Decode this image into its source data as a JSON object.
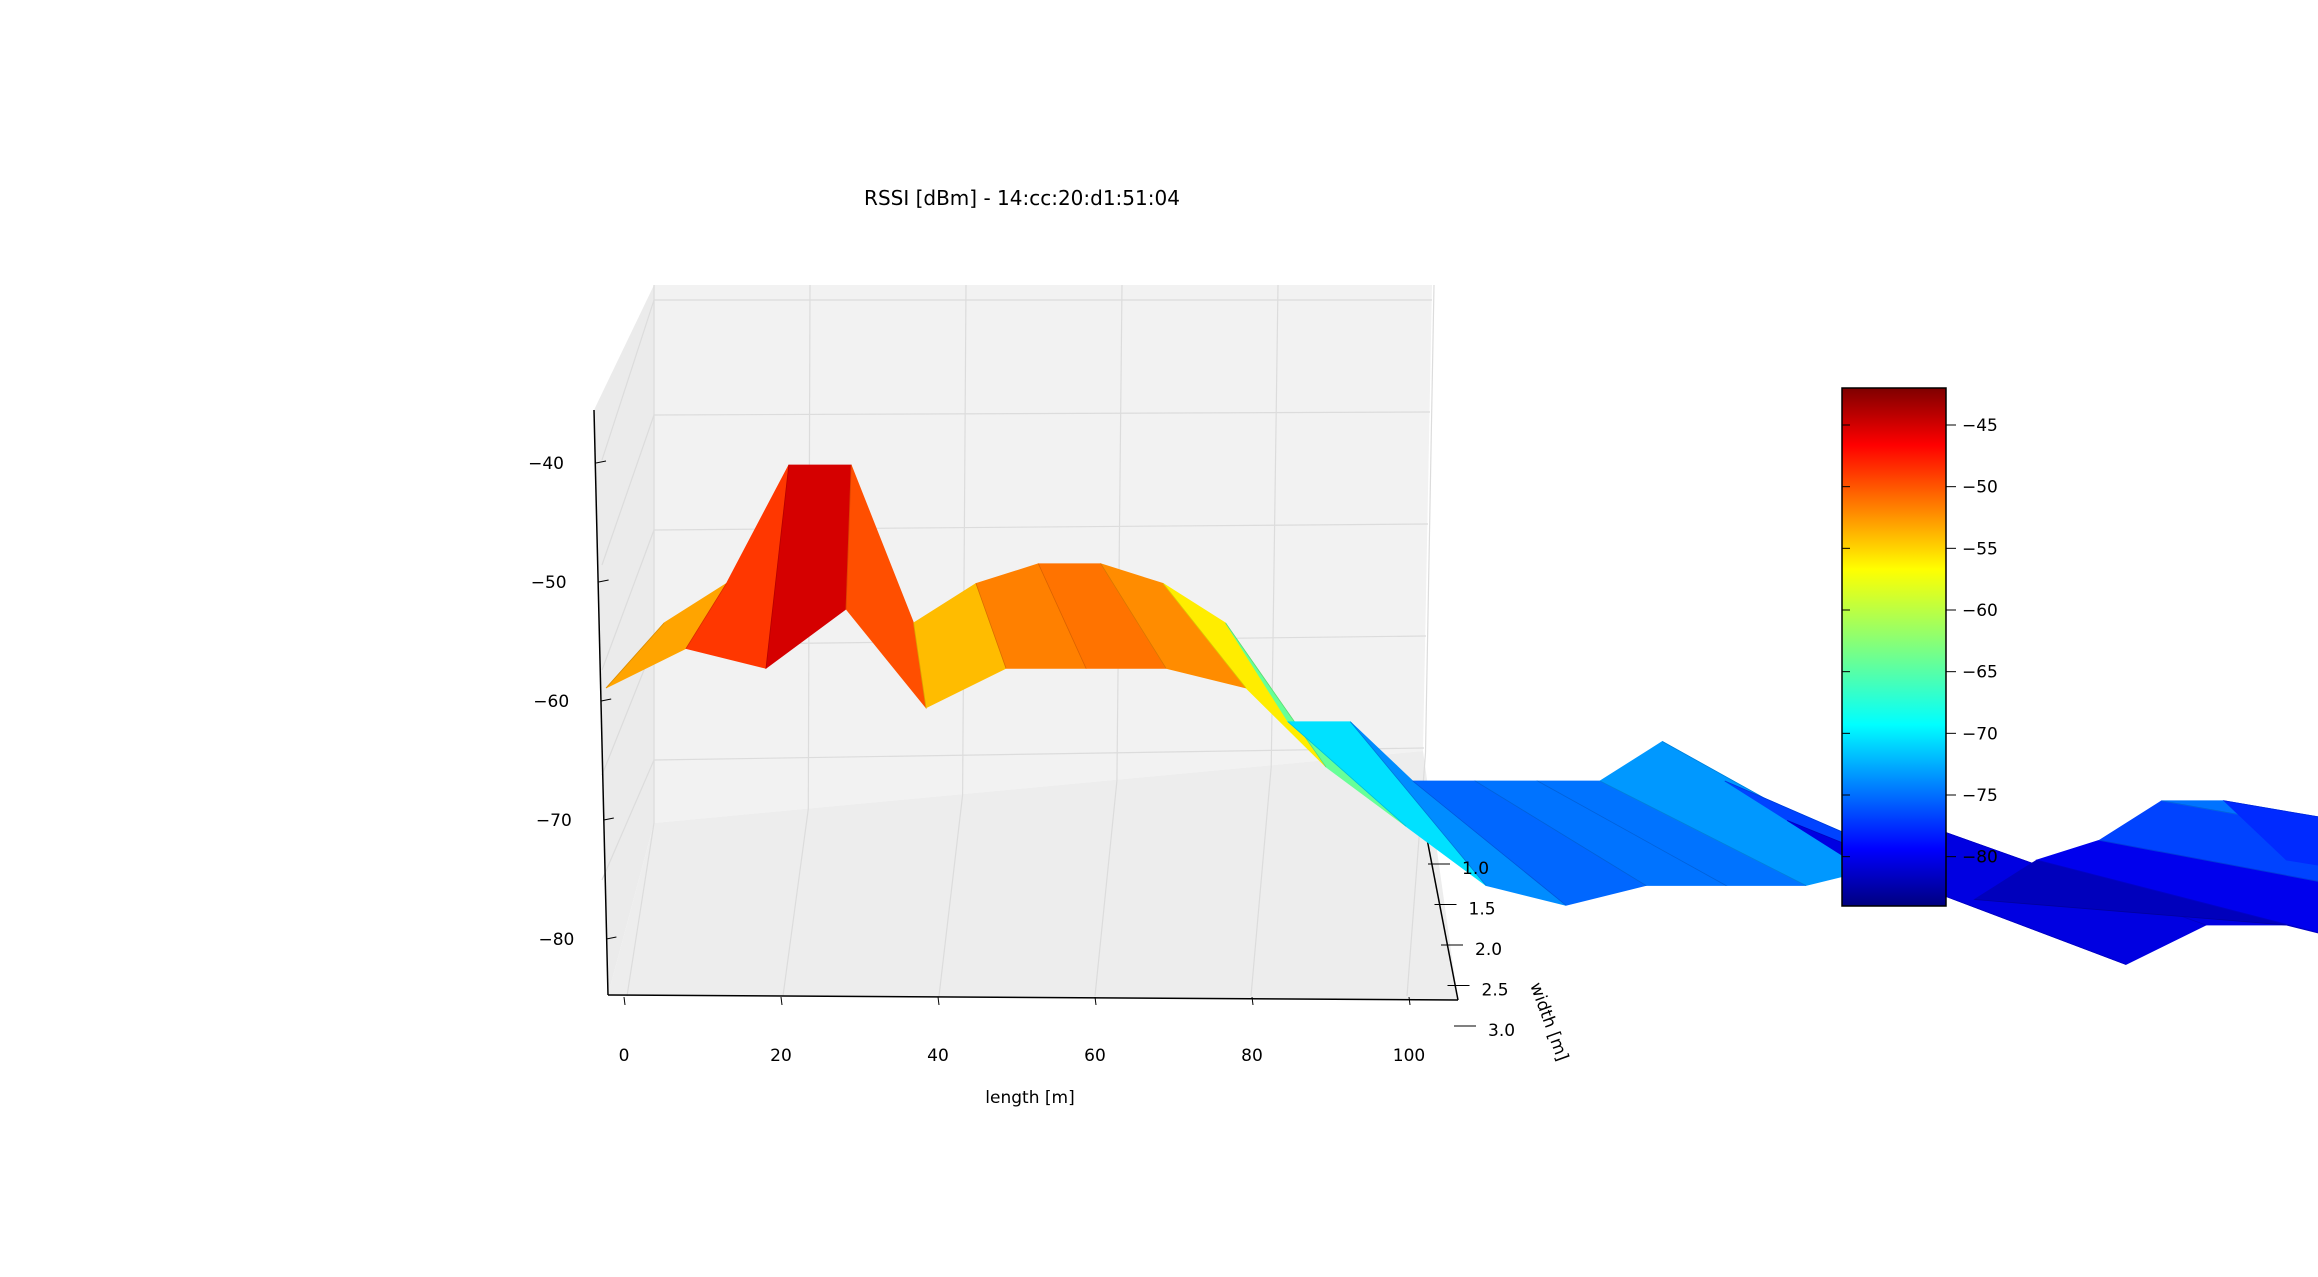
{
  "chart_data": {
    "type": "surface-3d",
    "title": "RSSI [dBm] - 14:cc:20:d1:51:04",
    "xlabel": "length [m]",
    "ylabel": "width [m]",
    "zlabel": "",
    "xlim": [
      -2,
      106
    ],
    "ylim": [
      0.8,
      3.0
    ],
    "zlim": [
      -86,
      -38
    ],
    "x_ticks": [
      "0",
      "20",
      "40",
      "60",
      "80",
      "100"
    ],
    "y_ticks": [
      "1.0",
      "1.5",
      "2.0",
      "2.5",
      "3.0"
    ],
    "z_ticks": [
      "−40",
      "−50",
      "−60",
      "−70",
      "−80"
    ],
    "colormap": "jet",
    "grid": true,
    "series": [
      {
        "x": [
          0,
          4,
          8,
          12,
          16,
          20,
          24,
          28,
          32,
          36,
          40,
          44,
          48,
          52,
          56,
          60,
          64,
          68,
          72,
          76,
          80,
          84,
          88,
          92,
          96,
          100,
          104
        ],
        "y": 1.0,
        "z": [
          -56,
          -52,
          -40,
          -40,
          -56,
          -52,
          -50,
          -50,
          -52,
          -56,
          -66,
          -66,
          -72,
          -72,
          -72,
          -72,
          -68,
          -72,
          -76,
          -80,
          -76,
          -84,
          -80,
          -78,
          -74,
          -74,
          -80
        ]
      },
      {
        "x": [
          0,
          4,
          8,
          12,
          16,
          20,
          24,
          28,
          32,
          36,
          40,
          44,
          48,
          52,
          56,
          60,
          64,
          68,
          72,
          76,
          80,
          84,
          88,
          92,
          96,
          100,
          104
        ],
        "y": 2.0,
        "z": [
          -56,
          -52,
          -54,
          -48,
          -58,
          -54,
          -54,
          -54,
          -56,
          -64,
          -70,
          -76,
          -78,
          -76,
          -76,
          -76,
          -74,
          -76,
          -80,
          -84,
          -80,
          -80,
          -82,
          -78,
          -74,
          -74,
          -80
        ]
      }
    ],
    "colorbar": {
      "min": -84,
      "max": -42,
      "ticks": [
        "−45",
        "−50",
        "−55",
        "−60",
        "−65",
        "−70",
        "−75",
        "−80"
      ],
      "tick_values": [
        -45,
        -50,
        -55,
        -60,
        -65,
        -70,
        -75,
        -80
      ]
    }
  }
}
